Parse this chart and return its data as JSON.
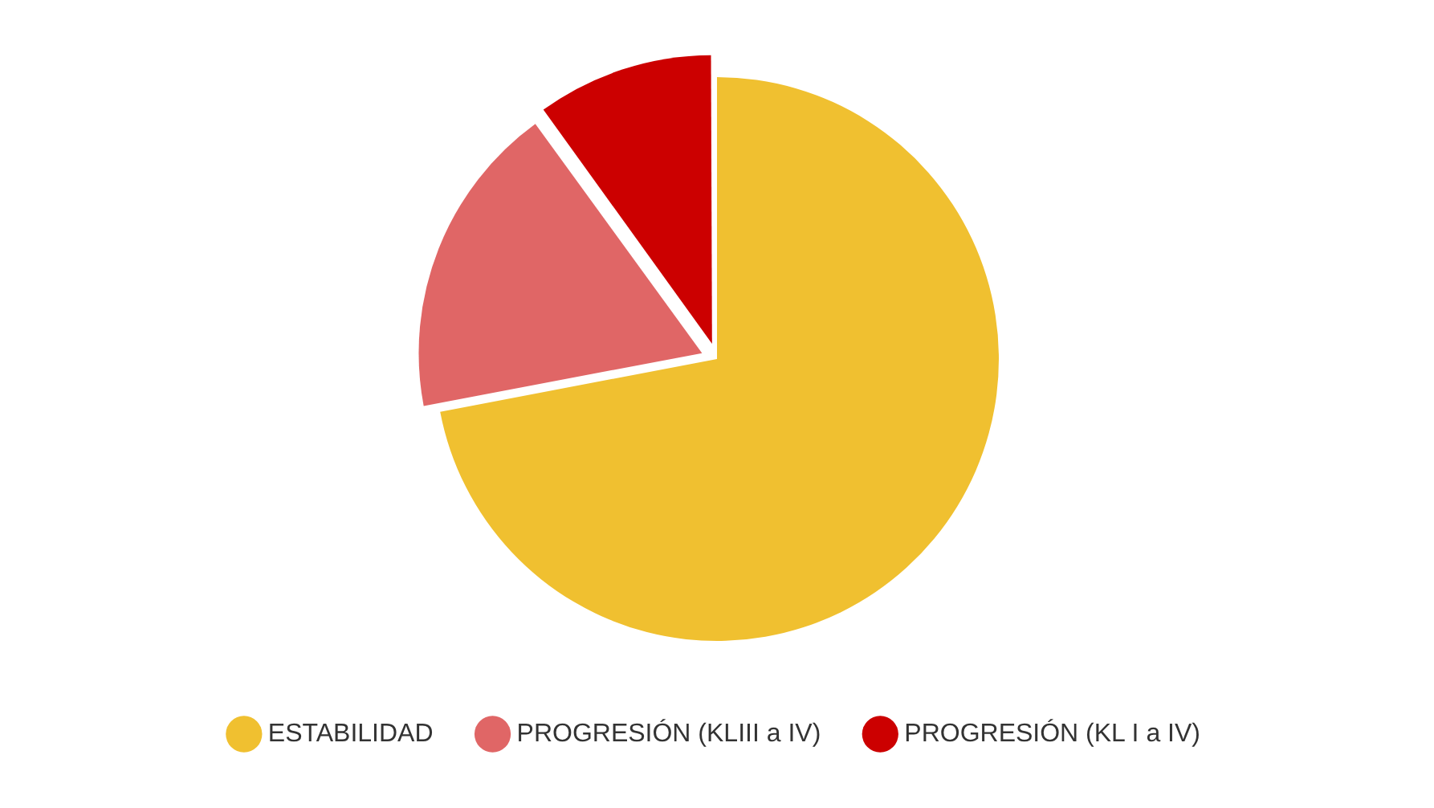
{
  "chart_data": {
    "type": "pie",
    "categories": [
      "ESTABILIDAD",
      "PROGRESIÓN (KLIII a IV)",
      "PROGRESIÓN (KL I a IV)"
    ],
    "values": [
      72,
      18,
      10
    ],
    "colors": [
      "#f0c030",
      "#e06666",
      "#cc0000"
    ],
    "legend": "bottom"
  }
}
